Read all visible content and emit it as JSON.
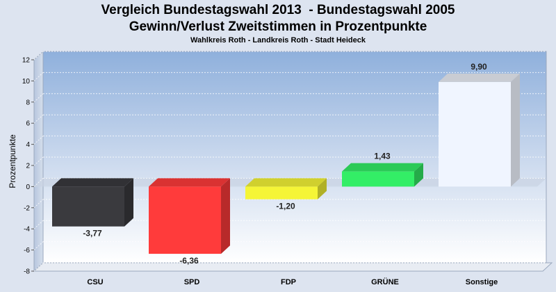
{
  "header": {
    "title_line1": "Vergleich Bundestagswahl 2013  - Bundestagswahl 2005",
    "title_line2": "Gewinn/Verlust Zweitstimmen in Prozentpunkte",
    "subtitle": "Wahlkreis Roth - Landkreis Roth - Stadt Heideck"
  },
  "chart_data": {
    "type": "bar",
    "title": "Vergleich Bundestagswahl 2013  - Bundestagswahl 2005",
    "subtitle": "Gewinn/Verlust Zweitstimmen in Prozentpunkte",
    "ylabel": "Prozentpunkte",
    "ylim": [
      -8,
      12
    ],
    "yticks": [
      -8,
      -6,
      -4,
      -2,
      0,
      2,
      4,
      6,
      8,
      10,
      12
    ],
    "categories": [
      "CSU",
      "SPD",
      "FDP",
      "GRÜNE",
      "Sonstige"
    ],
    "values": [
      -3.77,
      -6.36,
      -1.2,
      1.43,
      9.9
    ],
    "value_labels": [
      "-3,77",
      "-6,36",
      "-1,20",
      "1,43",
      "9,90"
    ],
    "colors": [
      "#3a3a3e",
      "#ff3b3b",
      "#f5f536",
      "#33ee66",
      "#f0f5ff"
    ],
    "grid": true
  }
}
